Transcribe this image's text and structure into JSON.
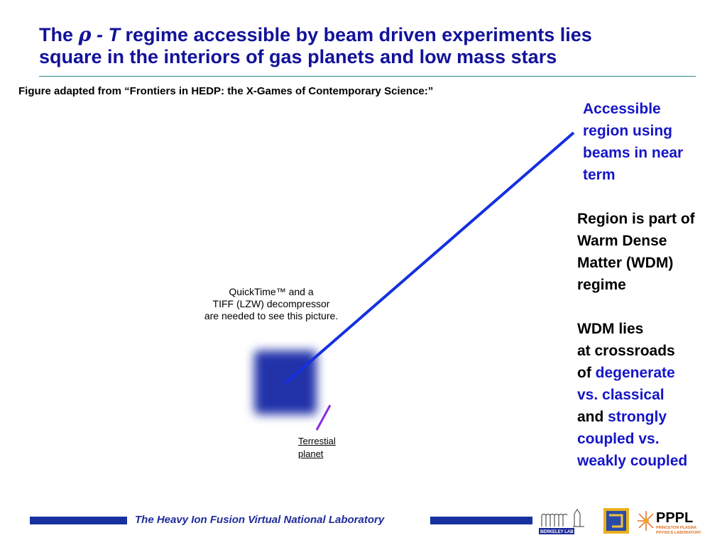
{
  "title": {
    "line1_pre": "The ",
    "rho": "ρ",
    "dash_T": " - T",
    "line1_post": " regime accessible by beam driven experiments lies",
    "line2": "square in the interiors of gas planets and low mass stars"
  },
  "caption": "Figure adapted from “Frontiers in HEDP: the X-Games of Contemporary Science:”",
  "quicktime": {
    "line1": "QuickTime™ and a",
    "line2": "TIFF (LZW) decompressor",
    "line3": "are needed to see this picture."
  },
  "terrestial": {
    "line1": "Terrestial",
    "line2": "planet"
  },
  "accessible": {
    "line1": "Accessible",
    "line2": "region using",
    "line3": "beams in near",
    "line4": "term"
  },
  "right": {
    "p1_line1": "Region is part of",
    "p1_line2": "Warm Dense",
    "p1_line3": "Matter (WDM)",
    "p1_line4": "regime",
    "p2_line1": "WDM lies",
    "p2_line2": "at crossroads",
    "p2_of": "of ",
    "p2_degenerate": "degenerate",
    "p2_classical": "vs. classical",
    "p2_and": "and ",
    "p2_strongly": "strongly",
    "p2_coupled": "coupled vs.",
    "p2_weakly": "weakly coupled"
  },
  "footer": {
    "text": "The Heavy Ion Fusion Virtual National Laboratory",
    "berkeley_logo_text": "BERKELEY LAB",
    "pppl_logo_text": "PPPL",
    "pppl_logo_sub1": "PRINCETON PLASMA",
    "pppl_logo_sub2": "PHYSICS LABORATORY"
  },
  "colors": {
    "title": "#12129a",
    "accent_blue": "#1515c8",
    "line_blue": "#1530e0",
    "line_purple": "#8a2be2",
    "footer_bar": "#1830a0"
  }
}
